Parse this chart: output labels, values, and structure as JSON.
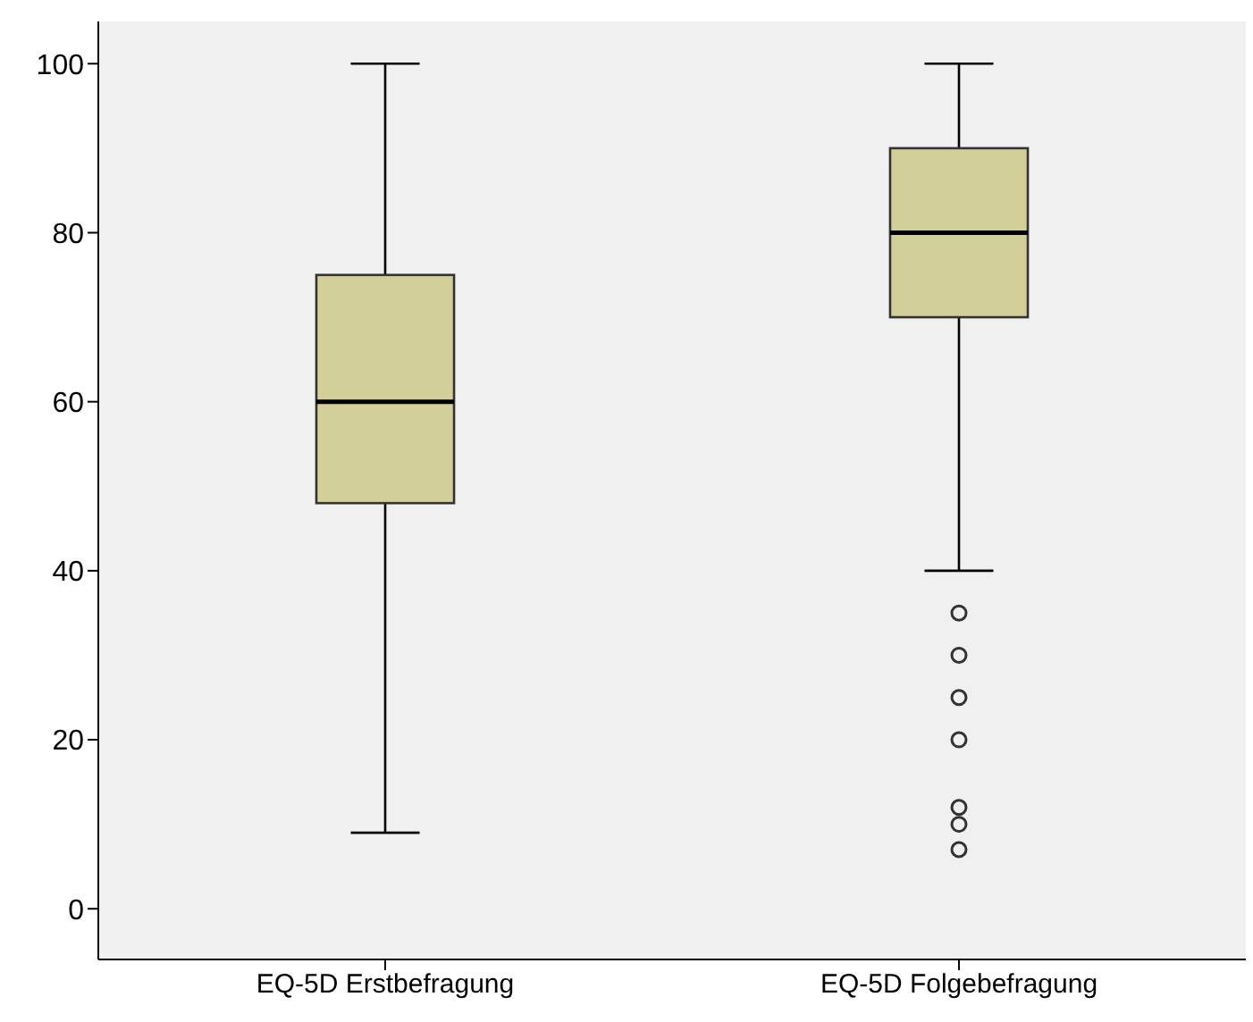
{
  "chart_data": {
    "type": "box",
    "categories": [
      "EQ-5D Erstbefragung",
      "EQ-5D Folgebefragung"
    ],
    "color": "#d3cf99",
    "boxes": [
      {
        "low": 9,
        "q1": 48,
        "median": 60,
        "q3": 75,
        "high": 100
      },
      {
        "low": 40,
        "q1": 70,
        "median": 80,
        "q3": 90,
        "high": 100,
        "outliers": [
          35,
          30,
          25,
          20,
          12,
          10,
          7
        ]
      }
    ],
    "ylim": [
      -6,
      105
    ],
    "yticks": [
      0,
      20,
      40,
      60,
      80,
      100
    ],
    "grid": false
  }
}
